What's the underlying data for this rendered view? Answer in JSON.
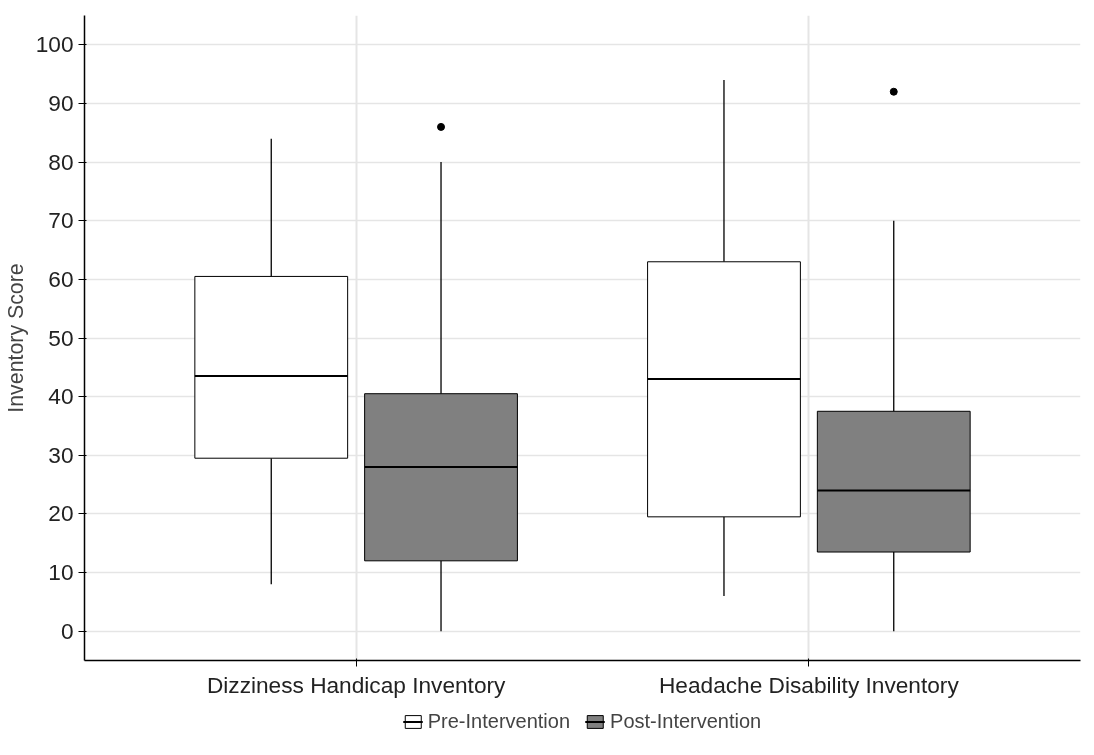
{
  "chart_data": {
    "type": "box",
    "ylabel": "Inventory Score",
    "categories": [
      "Dizziness Handicap Inventory",
      "Headache Disability Inventory"
    ],
    "series": [
      {
        "name": "Pre-Intervention",
        "color": "#ffffff",
        "boxes": [
          {
            "low": 8,
            "q1": 29.5,
            "median": 43.5,
            "q3": 60.5,
            "high": 84
          },
          {
            "low": 6,
            "q1": 19.5,
            "median": 43,
            "q3": 63,
            "high": 94
          }
        ]
      },
      {
        "name": "Post-Intervention",
        "color": "#808080",
        "boxes": [
          {
            "low": 0,
            "q1": 12,
            "median": 28,
            "q3": 40.5,
            "high": 80,
            "outliers": [
              86
            ]
          },
          {
            "low": 0,
            "q1": 13.5,
            "median": 24,
            "q3": 37.5,
            "high": 70,
            "outliers": [
              92
            ]
          }
        ]
      }
    ],
    "ylim": [
      -5,
      105
    ],
    "yticks": [
      0,
      10,
      20,
      30,
      40,
      50,
      60,
      70,
      80,
      90,
      100
    ],
    "grid": true,
    "legend": "bottom"
  }
}
